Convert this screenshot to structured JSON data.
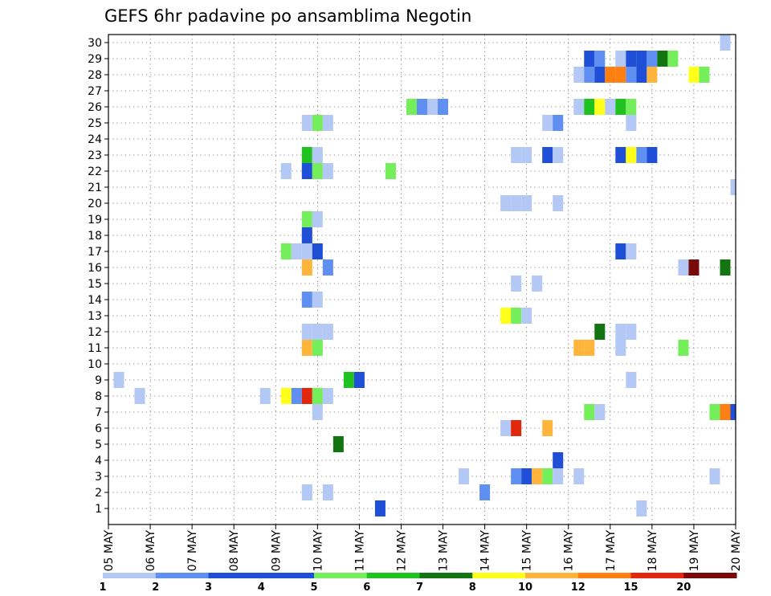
{
  "chart_data": {
    "type": "heatmap",
    "title": "GEFS 6hr padavine po ansamblima Negotin",
    "xlabel": "",
    "ylabel": "",
    "x_tick_labels": [
      "05 MAY",
      "06 MAY",
      "07 MAY",
      "08 MAY",
      "09 MAY",
      "10 MAY",
      "11 MAY",
      "12 MAY",
      "13 MAY",
      "14 MAY",
      "15 MAY",
      "16 MAY",
      "17 MAY",
      "18 MAY",
      "19 MAY",
      "20 MAY"
    ],
    "xlim": [
      0,
      60
    ],
    "x_unit": "6-hour steps from 05 MAY",
    "y_tick_labels": [
      "1",
      "2",
      "3",
      "4",
      "5",
      "6",
      "7",
      "8",
      "9",
      "10",
      "11",
      "12",
      "13",
      "14",
      "15",
      "16",
      "17",
      "18",
      "19",
      "20",
      "21",
      "22",
      "23",
      "24",
      "25",
      "26",
      "27",
      "28",
      "29",
      "30"
    ],
    "ylim": [
      0,
      30
    ],
    "grid": true,
    "colorbar": {
      "labels": [
        "1",
        "2",
        "3",
        "4",
        "5",
        "6",
        "7",
        "8",
        "10",
        "12",
        "15",
        "20"
      ],
      "colors": [
        "#b4c8f5",
        "#5f8ff0",
        "#1f4fd6",
        "#1f4fd6",
        "#74ee5a",
        "#1fc21f",
        "#127512",
        "#ffff19",
        "#ffb43c",
        "#ff7f12",
        "#e1280f",
        "#7a0a0a"
      ]
    },
    "cells": [
      {
        "x": 59,
        "y": 30,
        "c": "#b4c8f5"
      },
      {
        "x": 46,
        "y": 29,
        "c": "#1f4fd6"
      },
      {
        "x": 47,
        "y": 29,
        "c": "#5f8ff0"
      },
      {
        "x": 49,
        "y": 29,
        "c": "#b4c8f5"
      },
      {
        "x": 50,
        "y": 29,
        "c": "#1f4fd6"
      },
      {
        "x": 51,
        "y": 29,
        "c": "#1f4fd6"
      },
      {
        "x": 52,
        "y": 29,
        "c": "#5f8ff0"
      },
      {
        "x": 53,
        "y": 29,
        "c": "#127512"
      },
      {
        "x": 54,
        "y": 29,
        "c": "#74ee5a"
      },
      {
        "x": 45,
        "y": 28,
        "c": "#b4c8f5"
      },
      {
        "x": 46,
        "y": 28,
        "c": "#5f8ff0"
      },
      {
        "x": 47,
        "y": 28,
        "c": "#1f4fd6"
      },
      {
        "x": 48,
        "y": 28,
        "c": "#ff7f12"
      },
      {
        "x": 49,
        "y": 28,
        "c": "#ff7f12"
      },
      {
        "x": 50,
        "y": 28,
        "c": "#5f8ff0"
      },
      {
        "x": 51,
        "y": 28,
        "c": "#1f4fd6"
      },
      {
        "x": 52,
        "y": 28,
        "c": "#ffb43c"
      },
      {
        "x": 56,
        "y": 28,
        "c": "#ffff19"
      },
      {
        "x": 57,
        "y": 28,
        "c": "#74ee5a"
      },
      {
        "x": 29,
        "y": 26,
        "c": "#74ee5a"
      },
      {
        "x": 30,
        "y": 26,
        "c": "#5f8ff0"
      },
      {
        "x": 31,
        "y": 26,
        "c": "#b4c8f5"
      },
      {
        "x": 32,
        "y": 26,
        "c": "#5f8ff0"
      },
      {
        "x": 45,
        "y": 26,
        "c": "#b4c8f5"
      },
      {
        "x": 46,
        "y": 26,
        "c": "#1fc21f"
      },
      {
        "x": 47,
        "y": 26,
        "c": "#ffff19"
      },
      {
        "x": 48,
        "y": 26,
        "c": "#b4c8f5"
      },
      {
        "x": 49,
        "y": 26,
        "c": "#1fc21f"
      },
      {
        "x": 50,
        "y": 26,
        "c": "#74ee5a"
      },
      {
        "x": 19,
        "y": 25,
        "c": "#b4c8f5"
      },
      {
        "x": 20,
        "y": 25,
        "c": "#74ee5a"
      },
      {
        "x": 21,
        "y": 25,
        "c": "#b4c8f5"
      },
      {
        "x": 42,
        "y": 25,
        "c": "#b4c8f5"
      },
      {
        "x": 43,
        "y": 25,
        "c": "#5f8ff0"
      },
      {
        "x": 50,
        "y": 25,
        "c": "#b4c8f5"
      },
      {
        "x": 19,
        "y": 23,
        "c": "#1fc21f"
      },
      {
        "x": 20,
        "y": 23,
        "c": "#b4c8f5"
      },
      {
        "x": 39,
        "y": 23,
        "c": "#b4c8f5"
      },
      {
        "x": 40,
        "y": 23,
        "c": "#b4c8f5"
      },
      {
        "x": 42,
        "y": 23,
        "c": "#1f4fd6"
      },
      {
        "x": 43,
        "y": 23,
        "c": "#b4c8f5"
      },
      {
        "x": 49,
        "y": 23,
        "c": "#1f4fd6"
      },
      {
        "x": 50,
        "y": 23,
        "c": "#ffff19"
      },
      {
        "x": 51,
        "y": 23,
        "c": "#5f8ff0"
      },
      {
        "x": 52,
        "y": 23,
        "c": "#1f4fd6"
      },
      {
        "x": 17,
        "y": 22,
        "c": "#b4c8f5"
      },
      {
        "x": 19,
        "y": 22,
        "c": "#1f4fd6"
      },
      {
        "x": 20,
        "y": 22,
        "c": "#74ee5a"
      },
      {
        "x": 21,
        "y": 22,
        "c": "#b4c8f5"
      },
      {
        "x": 27,
        "y": 22,
        "c": "#74ee5a"
      },
      {
        "x": 60,
        "y": 21,
        "c": "#b4c8f5"
      },
      {
        "x": 38,
        "y": 20,
        "c": "#b4c8f5"
      },
      {
        "x": 39,
        "y": 20,
        "c": "#b4c8f5"
      },
      {
        "x": 40,
        "y": 20,
        "c": "#b4c8f5"
      },
      {
        "x": 43,
        "y": 20,
        "c": "#b4c8f5"
      },
      {
        "x": 19,
        "y": 19,
        "c": "#74ee5a"
      },
      {
        "x": 20,
        "y": 19,
        "c": "#b4c8f5"
      },
      {
        "x": 19,
        "y": 18,
        "c": "#1f4fd6"
      },
      {
        "x": 17,
        "y": 17,
        "c": "#74ee5a"
      },
      {
        "x": 18,
        "y": 17,
        "c": "#b4c8f5"
      },
      {
        "x": 19,
        "y": 17,
        "c": "#b4c8f5"
      },
      {
        "x": 20,
        "y": 17,
        "c": "#1f4fd6"
      },
      {
        "x": 49,
        "y": 17,
        "c": "#1f4fd6"
      },
      {
        "x": 50,
        "y": 17,
        "c": "#b4c8f5"
      },
      {
        "x": 19,
        "y": 16,
        "c": "#ffb43c"
      },
      {
        "x": 21,
        "y": 16,
        "c": "#5f8ff0"
      },
      {
        "x": 55,
        "y": 16,
        "c": "#b4c8f5"
      },
      {
        "x": 56,
        "y": 16,
        "c": "#7a0a0a"
      },
      {
        "x": 59,
        "y": 16,
        "c": "#127512"
      },
      {
        "x": 39,
        "y": 15,
        "c": "#b4c8f5"
      },
      {
        "x": 41,
        "y": 15,
        "c": "#b4c8f5"
      },
      {
        "x": 19,
        "y": 14,
        "c": "#5f8ff0"
      },
      {
        "x": 20,
        "y": 14,
        "c": "#b4c8f5"
      },
      {
        "x": 38,
        "y": 13,
        "c": "#ffff19"
      },
      {
        "x": 39,
        "y": 13,
        "c": "#74ee5a"
      },
      {
        "x": 40,
        "y": 13,
        "c": "#b4c8f5"
      },
      {
        "x": 19,
        "y": 12,
        "c": "#b4c8f5"
      },
      {
        "x": 20,
        "y": 12,
        "c": "#b4c8f5"
      },
      {
        "x": 21,
        "y": 12,
        "c": "#b4c8f5"
      },
      {
        "x": 47,
        "y": 12,
        "c": "#127512"
      },
      {
        "x": 49,
        "y": 12,
        "c": "#b4c8f5"
      },
      {
        "x": 50,
        "y": 12,
        "c": "#b4c8f5"
      },
      {
        "x": 19,
        "y": 11,
        "c": "#ffb43c"
      },
      {
        "x": 20,
        "y": 11,
        "c": "#74ee5a"
      },
      {
        "x": 45,
        "y": 11,
        "c": "#ffb43c"
      },
      {
        "x": 46,
        "y": 11,
        "c": "#ffb43c"
      },
      {
        "x": 49,
        "y": 11,
        "c": "#b4c8f5"
      },
      {
        "x": 55,
        "y": 11,
        "c": "#74ee5a"
      },
      {
        "x": 1,
        "y": 9,
        "c": "#b4c8f5"
      },
      {
        "x": 23,
        "y": 9,
        "c": "#1fc21f"
      },
      {
        "x": 24,
        "y": 9,
        "c": "#1f4fd6"
      },
      {
        "x": 50,
        "y": 9,
        "c": "#b4c8f5"
      },
      {
        "x": 3,
        "y": 8,
        "c": "#b4c8f5"
      },
      {
        "x": 15,
        "y": 8,
        "c": "#b4c8f5"
      },
      {
        "x": 17,
        "y": 8,
        "c": "#ffff19"
      },
      {
        "x": 18,
        "y": 8,
        "c": "#5f8ff0"
      },
      {
        "x": 19,
        "y": 8,
        "c": "#e1280f"
      },
      {
        "x": 20,
        "y": 8,
        "c": "#74ee5a"
      },
      {
        "x": 21,
        "y": 8,
        "c": "#b4c8f5"
      },
      {
        "x": 20,
        "y": 7,
        "c": "#b4c8f5"
      },
      {
        "x": 46,
        "y": 7,
        "c": "#74ee5a"
      },
      {
        "x": 47,
        "y": 7,
        "c": "#b4c8f5"
      },
      {
        "x": 58,
        "y": 7,
        "c": "#74ee5a"
      },
      {
        "x": 59,
        "y": 7,
        "c": "#ff7f12"
      },
      {
        "x": 60,
        "y": 7,
        "c": "#1f4fd6"
      },
      {
        "x": 38,
        "y": 6,
        "c": "#b4c8f5"
      },
      {
        "x": 39,
        "y": 6,
        "c": "#e1280f"
      },
      {
        "x": 42,
        "y": 6,
        "c": "#ffb43c"
      },
      {
        "x": 22,
        "y": 5,
        "c": "#127512"
      },
      {
        "x": 43,
        "y": 4,
        "c": "#1f4fd6"
      },
      {
        "x": 34,
        "y": 3,
        "c": "#b4c8f5"
      },
      {
        "x": 39,
        "y": 3,
        "c": "#5f8ff0"
      },
      {
        "x": 40,
        "y": 3,
        "c": "#1f4fd6"
      },
      {
        "x": 41,
        "y": 3,
        "c": "#ffb43c"
      },
      {
        "x": 42,
        "y": 3,
        "c": "#74ee5a"
      },
      {
        "x": 43,
        "y": 3,
        "c": "#b4c8f5"
      },
      {
        "x": 45,
        "y": 3,
        "c": "#b4c8f5"
      },
      {
        "x": 58,
        "y": 3,
        "c": "#b4c8f5"
      },
      {
        "x": 19,
        "y": 2,
        "c": "#b4c8f5"
      },
      {
        "x": 21,
        "y": 2,
        "c": "#b4c8f5"
      },
      {
        "x": 36,
        "y": 2,
        "c": "#5f8ff0"
      },
      {
        "x": 26,
        "y": 1,
        "c": "#1f4fd6"
      },
      {
        "x": 51,
        "y": 1,
        "c": "#b4c8f5"
      }
    ]
  }
}
